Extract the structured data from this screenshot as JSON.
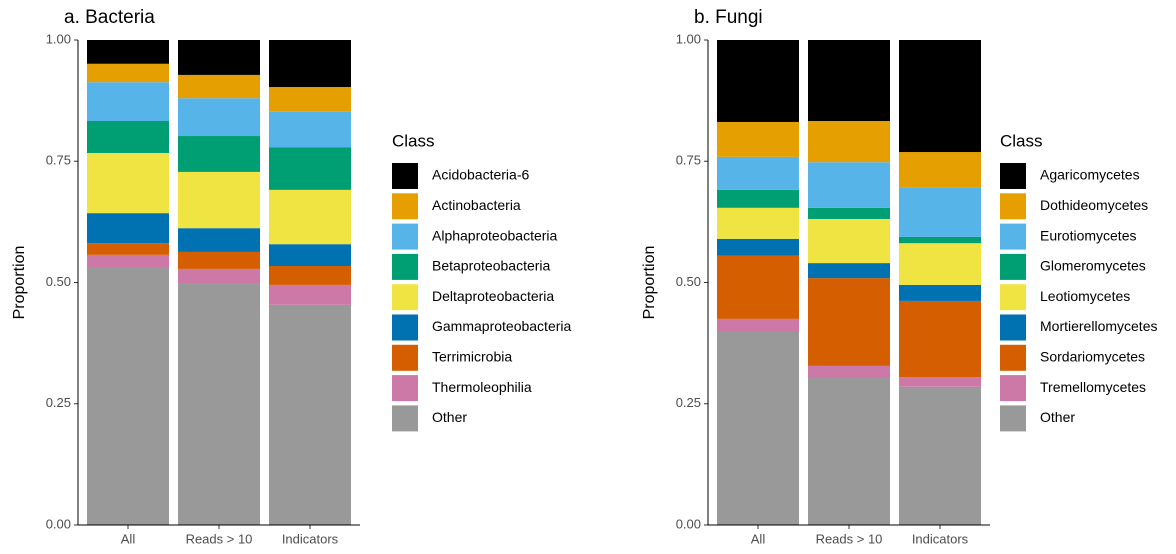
{
  "chart_data": [
    {
      "type": "bar",
      "stacked": true,
      "title": "a. Bacteria",
      "y_label": "Proportion",
      "legend_title": "Class",
      "categories": [
        "All",
        "Reads > 10",
        "Indicators"
      ],
      "ylim": [
        0,
        1
      ],
      "yticks": [
        {
          "value": 0,
          "label": "0.00"
        },
        {
          "value": 0.25,
          "label": "0.25"
        },
        {
          "value": 0.5,
          "label": "0.50"
        },
        {
          "value": 0.75,
          "label": "0.75"
        },
        {
          "value": 1,
          "label": "1.00"
        }
      ],
      "series": [
        {
          "name": "Acidobacteria-6",
          "color": "#000000",
          "values": [
            0.049,
            0.072,
            0.097
          ]
        },
        {
          "name": "Actinobacteria",
          "color": "#E69F00",
          "values": [
            0.038,
            0.048,
            0.051
          ]
        },
        {
          "name": "Alphaproteobacteria",
          "color": "#56B4E9",
          "values": [
            0.08,
            0.078,
            0.073
          ]
        },
        {
          "name": "Betaproteobacteria",
          "color": "#009E73",
          "values": [
            0.066,
            0.074,
            0.088
          ]
        },
        {
          "name": "Deltaproteobacteria",
          "color": "#F0E442",
          "values": [
            0.124,
            0.116,
            0.112
          ]
        },
        {
          "name": "Gammaproteobacteria",
          "color": "#0072B2",
          "values": [
            0.062,
            0.049,
            0.045
          ]
        },
        {
          "name": "Terrimicrobia",
          "color": "#D55E00",
          "values": [
            0.024,
            0.035,
            0.039
          ]
        },
        {
          "name": "Thermoleophilia",
          "color": "#CC79A7",
          "values": [
            0.025,
            0.031,
            0.041
          ]
        },
        {
          "name": "Other",
          "color": "#999999",
          "values": [
            0.532,
            0.497,
            0.454
          ]
        }
      ]
    },
    {
      "type": "bar",
      "stacked": true,
      "title": "b. Fungi",
      "y_label": "Proportion",
      "legend_title": "Class",
      "categories": [
        "All",
        "Reads > 10",
        "Indicators"
      ],
      "ylim": [
        0,
        1
      ],
      "yticks": [
        {
          "value": 0,
          "label": "0.00"
        },
        {
          "value": 0.25,
          "label": "0.25"
        },
        {
          "value": 0.5,
          "label": "0.50"
        },
        {
          "value": 0.75,
          "label": "0.75"
        },
        {
          "value": 1,
          "label": "1.00"
        }
      ],
      "series": [
        {
          "name": "Agaricomycetes",
          "color": "#000000",
          "values": [
            0.169,
            0.167,
            0.231
          ]
        },
        {
          "name": "Dothideomycetes",
          "color": "#E69F00",
          "values": [
            0.072,
            0.085,
            0.074
          ]
        },
        {
          "name": "Eurotiomycetes",
          "color": "#56B4E9",
          "values": [
            0.068,
            0.094,
            0.101
          ]
        },
        {
          "name": "Glomeromycetes",
          "color": "#009E73",
          "values": [
            0.037,
            0.023,
            0.013
          ]
        },
        {
          "name": "Leotiomycetes",
          "color": "#F0E442",
          "values": [
            0.064,
            0.091,
            0.086
          ]
        },
        {
          "name": "Mortierellomycetes",
          "color": "#0072B2",
          "values": [
            0.035,
            0.031,
            0.033
          ]
        },
        {
          "name": "Sordariomycetes",
          "color": "#D55E00",
          "values": [
            0.13,
            0.181,
            0.157
          ]
        },
        {
          "name": "Tremellomycetes",
          "color": "#CC79A7",
          "values": [
            0.025,
            0.025,
            0.02
          ]
        },
        {
          "name": "Other",
          "color": "#999999",
          "values": [
            0.4,
            0.303,
            0.285
          ]
        }
      ]
    }
  ]
}
